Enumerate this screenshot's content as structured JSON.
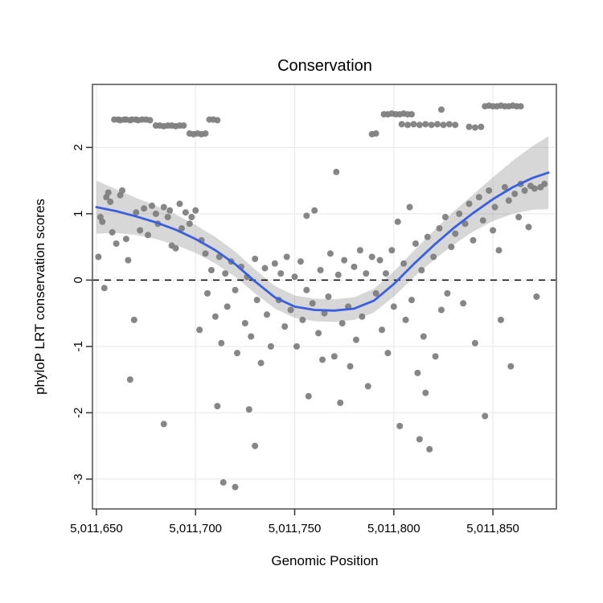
{
  "figure": {
    "title": "Conservation",
    "xlabel": "Genomic Position",
    "ylabel": "phyloP LRT conservation scores"
  },
  "chart_data": {
    "type": "scatter",
    "title": "Conservation",
    "xlabel": "Genomic Position",
    "ylabel": "phyloP LRT conservation scores",
    "xlim": [
      5011648,
      5011882
    ],
    "ylim": [
      -3.45,
      2.95
    ],
    "xticks": [
      5011650,
      5011700,
      5011750,
      5011800,
      5011850
    ],
    "xtick_labels": [
      "5,011,650",
      "5,011,700",
      "5,011,750",
      "5,011,800",
      "5,011,850"
    ],
    "yticks": [
      -3,
      -2,
      -1,
      0,
      1,
      2
    ],
    "ytick_labels": [
      "-3",
      "-2",
      "-1",
      "0",
      "1",
      "2"
    ],
    "grid": true,
    "legend": "none",
    "hline": 0,
    "colors": {
      "point": "#7f7f7f",
      "line": "#3a5fdf",
      "ribbon": "#8c8c8c",
      "grid": "#ececec",
      "border": "#7a7a7a",
      "tick": "#333333",
      "text": "#000000",
      "hline": "#000000",
      "panel_bg": "#ffffff"
    },
    "smooth": {
      "x": [
        5011650,
        5011660,
        5011670,
        5011680,
        5011690,
        5011700,
        5011710,
        5011720,
        5011730,
        5011740,
        5011750,
        5011760,
        5011770,
        5011780,
        5011790,
        5011800,
        5011810,
        5011820,
        5011830,
        5011840,
        5011850,
        5011860,
        5011870,
        5011878
      ],
      "y": [
        1.1,
        1.04,
        0.96,
        0.87,
        0.76,
        0.62,
        0.45,
        0.24,
        -0.02,
        -0.26,
        -0.4,
        -0.45,
        -0.46,
        -0.43,
        -0.31,
        -0.06,
        0.24,
        0.52,
        0.78,
        1.01,
        1.22,
        1.4,
        1.54,
        1.62
      ],
      "hi": [
        1.5,
        1.37,
        1.24,
        1.12,
        0.99,
        0.83,
        0.65,
        0.43,
        0.16,
        -0.09,
        -0.23,
        -0.28,
        -0.29,
        -0.26,
        -0.13,
        0.13,
        0.44,
        0.74,
        1.03,
        1.29,
        1.55,
        1.8,
        2.02,
        2.17
      ],
      "lo": [
        0.7,
        0.71,
        0.68,
        0.62,
        0.53,
        0.41,
        0.25,
        0.05,
        -0.2,
        -0.43,
        -0.57,
        -0.62,
        -0.63,
        -0.6,
        -0.49,
        -0.25,
        0.04,
        0.3,
        0.53,
        0.73,
        0.89,
        1.0,
        1.06,
        1.07
      ]
    },
    "points": [
      [
        5011659,
        2.42
      ],
      [
        5011661,
        2.42
      ],
      [
        5011662,
        2.41
      ],
      [
        5011664,
        2.42
      ],
      [
        5011665,
        2.42
      ],
      [
        5011667,
        2.41
      ],
      [
        5011668,
        2.42
      ],
      [
        5011670,
        2.42
      ],
      [
        5011671,
        2.41
      ],
      [
        5011673,
        2.42
      ],
      [
        5011675,
        2.42
      ],
      [
        5011677,
        2.41
      ],
      [
        5011680,
        2.33
      ],
      [
        5011682,
        2.33
      ],
      [
        5011684,
        2.32
      ],
      [
        5011686,
        2.33
      ],
      [
        5011688,
        2.33
      ],
      [
        5011690,
        2.32
      ],
      [
        5011692,
        2.33
      ],
      [
        5011694,
        2.33
      ],
      [
        5011697,
        2.21
      ],
      [
        5011699,
        2.2
      ],
      [
        5011701,
        2.21
      ],
      [
        5011703,
        2.2
      ],
      [
        5011705,
        2.21
      ],
      [
        5011707,
        2.42
      ],
      [
        5011709,
        2.42
      ],
      [
        5011711,
        2.41
      ],
      [
        5011789,
        2.2
      ],
      [
        5011791,
        2.21
      ],
      [
        5011795,
        2.5
      ],
      [
        5011797,
        2.5
      ],
      [
        5011799,
        2.51
      ],
      [
        5011801,
        2.5
      ],
      [
        5011803,
        2.5
      ],
      [
        5011805,
        2.51
      ],
      [
        5011807,
        2.5
      ],
      [
        5011809,
        2.5
      ],
      [
        5011804,
        2.35
      ],
      [
        5011807,
        2.34
      ],
      [
        5011810,
        2.35
      ],
      [
        5011813,
        2.34
      ],
      [
        5011816,
        2.35
      ],
      [
        5011819,
        2.34
      ],
      [
        5011822,
        2.35
      ],
      [
        5011825,
        2.34
      ],
      [
        5011828,
        2.35
      ],
      [
        5011831,
        2.34
      ],
      [
        5011824,
        2.57
      ],
      [
        5011838,
        2.31
      ],
      [
        5011841,
        2.3
      ],
      [
        5011844,
        2.31
      ],
      [
        5011846,
        2.62
      ],
      [
        5011848,
        2.63
      ],
      [
        5011850,
        2.62
      ],
      [
        5011852,
        2.62
      ],
      [
        5011854,
        2.63
      ],
      [
        5011856,
        2.62
      ],
      [
        5011858,
        2.62
      ],
      [
        5011860,
        2.63
      ],
      [
        5011862,
        2.62
      ],
      [
        5011864,
        2.62
      ],
      [
        5011651,
        0.35
      ],
      [
        5011652,
        0.95
      ],
      [
        5011653,
        0.88
      ],
      [
        5011654,
        -0.12
      ],
      [
        5011655,
        1.25
      ],
      [
        5011656,
        1.32
      ],
      [
        5011657,
        1.18
      ],
      [
        5011658,
        0.72
      ],
      [
        5011660,
        0.55
      ],
      [
        5011662,
        1.28
      ],
      [
        5011663,
        1.35
      ],
      [
        5011665,
        0.62
      ],
      [
        5011666,
        0.3
      ],
      [
        5011667,
        -1.5
      ],
      [
        5011669,
        -0.6
      ],
      [
        5011670,
        1.02
      ],
      [
        5011672,
        0.75
      ],
      [
        5011674,
        1.08
      ],
      [
        5011676,
        0.68
      ],
      [
        5011678,
        1.12
      ],
      [
        5011680,
        1.0
      ],
      [
        5011681,
        0.85
      ],
      [
        5011684,
        -2.17
      ],
      [
        5011684,
        1.1
      ],
      [
        5011686,
        0.95
      ],
      [
        5011687,
        1.05
      ],
      [
        5011688,
        0.52
      ],
      [
        5011690,
        0.48
      ],
      [
        5011692,
        1.15
      ],
      [
        5011693,
        0.78
      ],
      [
        5011695,
        1.02
      ],
      [
        5011697,
        0.85
      ],
      [
        5011698,
        0.95
      ],
      [
        5011700,
        1.05
      ],
      [
        5011702,
        -0.75
      ],
      [
        5011703,
        0.6
      ],
      [
        5011705,
        0.4
      ],
      [
        5011706,
        -0.2
      ],
      [
        5011708,
        0.15
      ],
      [
        5011710,
        -0.55
      ],
      [
        5011711,
        -1.9
      ],
      [
        5011712,
        0.35
      ],
      [
        5011713,
        -0.95
      ],
      [
        5011715,
        0.1
      ],
      [
        5011716,
        -0.4
      ],
      [
        5011718,
        0.28
      ],
      [
        5011720,
        -0.15
      ],
      [
        5011721,
        -1.1
      ],
      [
        5011723,
        0.2
      ],
      [
        5011725,
        -0.65
      ],
      [
        5011726,
        0.05
      ],
      [
        5011727,
        -1.95
      ],
      [
        5011728,
        -0.85
      ],
      [
        5011730,
        0.32
      ],
      [
        5011730,
        -2.5
      ],
      [
        5011731,
        -0.3
      ],
      [
        5011733,
        -1.25
      ],
      [
        5011735,
        0.18
      ],
      [
        5011736,
        -0.52
      ],
      [
        5011738,
        -1.0
      ],
      [
        5011740,
        0.25
      ],
      [
        5011714,
        -3.05
      ],
      [
        5011720,
        -3.12
      ],
      [
        5011742,
        -0.3
      ],
      [
        5011743,
        0.1
      ],
      [
        5011745,
        -0.7
      ],
      [
        5011746,
        0.35
      ],
      [
        5011748,
        -0.45
      ],
      [
        5011750,
        0.05
      ],
      [
        5011751,
        -1.0
      ],
      [
        5011753,
        0.28
      ],
      [
        5011754,
        -0.6
      ],
      [
        5011756,
        -0.15
      ],
      [
        5011756,
        0.97
      ],
      [
        5011757,
        -1.75
      ],
      [
        5011759,
        -0.35
      ],
      [
        5011760,
        1.05
      ],
      [
        5011762,
        -0.8
      ],
      [
        5011763,
        0.15
      ],
      [
        5011764,
        -1.2
      ],
      [
        5011765,
        -0.5
      ],
      [
        5011767,
        -0.25
      ],
      [
        5011768,
        0.4
      ],
      [
        5011770,
        -1.15
      ],
      [
        5011771,
        1.63
      ],
      [
        5011772,
        0.08
      ],
      [
        5011773,
        -1.85
      ],
      [
        5011774,
        -0.65
      ],
      [
        5011775,
        0.3
      ],
      [
        5011777,
        -0.4
      ],
      [
        5011778,
        -1.3
      ],
      [
        5011780,
        0.2
      ],
      [
        5011781,
        -0.9
      ],
      [
        5011783,
        0.45
      ],
      [
        5011784,
        -0.55
      ],
      [
        5011786,
        0.1
      ],
      [
        5011787,
        -1.6
      ],
      [
        5011789,
        0.35
      ],
      [
        5011791,
        -0.2
      ],
      [
        5011793,
        0.3
      ],
      [
        5011794,
        -0.75
      ],
      [
        5011796,
        0.1
      ],
      [
        5011797,
        -1.1
      ],
      [
        5011799,
        0.45
      ],
      [
        5011800,
        -0.4
      ],
      [
        5011802,
        0.88
      ],
      [
        5011803,
        -2.2
      ],
      [
        5011805,
        0.25
      ],
      [
        5011806,
        -0.6
      ],
      [
        5011808,
        1.1
      ],
      [
        5011809,
        -0.3
      ],
      [
        5011811,
        0.55
      ],
      [
        5011812,
        -1.4
      ],
      [
        5011813,
        -2.4
      ],
      [
        5011814,
        0.15
      ],
      [
        5011815,
        -0.85
      ],
      [
        5011816,
        -1.7
      ],
      [
        5011817,
        0.65
      ],
      [
        5011818,
        -2.55
      ],
      [
        5011820,
        0.35
      ],
      [
        5011821,
        -1.15
      ],
      [
        5011823,
        0.78
      ],
      [
        5011824,
        -0.45
      ],
      [
        5011826,
        0.95
      ],
      [
        5011827,
        -0.2
      ],
      [
        5011829,
        0.5
      ],
      [
        5011831,
        0.7
      ],
      [
        5011833,
        1.0
      ],
      [
        5011835,
        -0.35
      ],
      [
        5011836,
        0.85
      ],
      [
        5011838,
        1.15
      ],
      [
        5011840,
        0.6
      ],
      [
        5011841,
        -0.95
      ],
      [
        5011843,
        1.25
      ],
      [
        5011845,
        0.9
      ],
      [
        5011846,
        -2.05
      ],
      [
        5011848,
        1.35
      ],
      [
        5011850,
        0.75
      ],
      [
        5011851,
        1.1
      ],
      [
        5011853,
        0.45
      ],
      [
        5011854,
        -0.6
      ],
      [
        5011856,
        1.4
      ],
      [
        5011858,
        1.2
      ],
      [
        5011859,
        -1.3
      ],
      [
        5011861,
        1.3
      ],
      [
        5011863,
        0.95
      ],
      [
        5011864,
        1.45
      ],
      [
        5011866,
        1.35
      ],
      [
        5011868,
        0.8
      ],
      [
        5011869,
        1.42
      ],
      [
        5011871,
        1.38
      ],
      [
        5011872,
        -0.25
      ],
      [
        5011874,
        1.4
      ],
      [
        5011876,
        1.45
      ]
    ]
  }
}
